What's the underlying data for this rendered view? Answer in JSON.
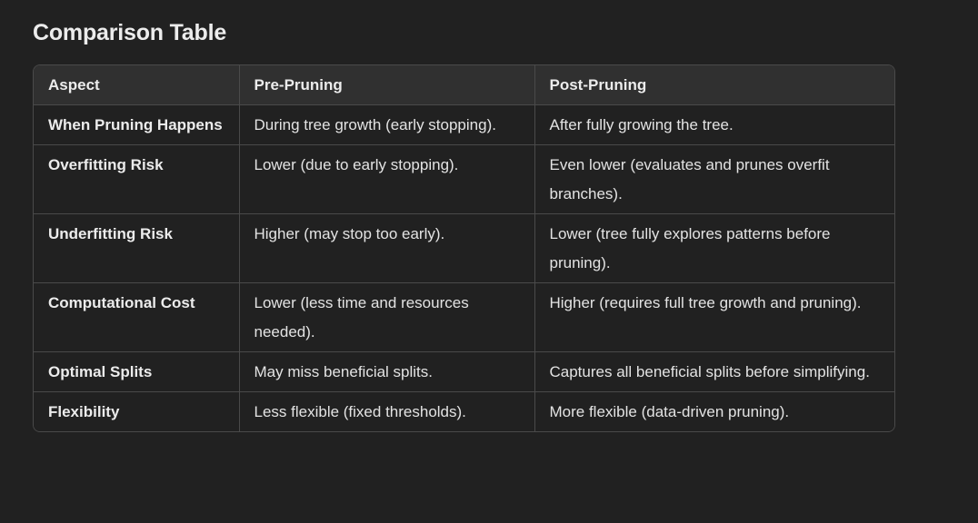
{
  "heading": "Comparison Table",
  "table": {
    "headers": [
      "Aspect",
      "Pre-Pruning",
      "Post-Pruning"
    ],
    "rows": [
      [
        "When Pruning Happens",
        "During tree growth (early stopping).",
        "After fully growing the tree."
      ],
      [
        "Overfitting Risk",
        "Lower (due to early stopping).",
        "Even lower (evaluates and prunes overfit branches)."
      ],
      [
        "Underfitting Risk",
        "Higher (may stop too early).",
        "Lower (tree fully explores patterns before pruning)."
      ],
      [
        "Computational Cost",
        "Lower (less time and resources needed).",
        "Higher (requires full tree growth and pruning)."
      ],
      [
        "Optimal Splits",
        "May miss beneficial splits.",
        "Captures all beneficial splits before simplifying."
      ],
      [
        "Flexibility",
        "Less flexible (fixed thresholds).",
        "More flexible (data-driven pruning)."
      ]
    ]
  }
}
